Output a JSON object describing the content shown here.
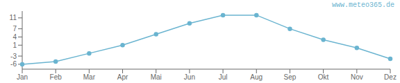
{
  "chart_data": {
    "type": "line",
    "categories": [
      "Jan",
      "Feb",
      "Mar",
      "Apr",
      "Mai",
      "Jun",
      "Jul",
      "Aug",
      "Sep",
      "Okt",
      "Nov",
      "Dez"
    ],
    "values": [
      -6,
      -5,
      -2,
      1,
      5,
      9,
      12,
      12,
      7,
      3,
      0,
      -4
    ],
    "color": "#6ab4d0",
    "marker": "circle",
    "ylim": [
      -7.8,
      13.5
    ],
    "yticks": [
      -6,
      -3,
      1,
      4,
      7,
      11
    ],
    "grid": false,
    "annotation": "www.meteo365.de"
  }
}
